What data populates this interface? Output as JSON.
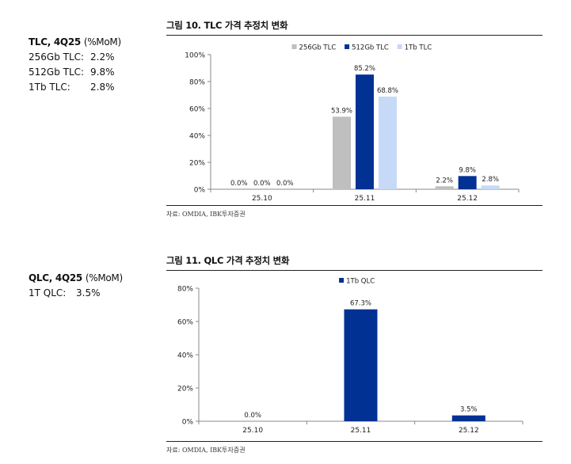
{
  "sidebar_tlc": {
    "heading": "TLC, 4Q25",
    "unit": "(%MoM)",
    "items": [
      {
        "label": "256Gb TLC:",
        "value": "2.2%"
      },
      {
        "label": "512Gb TLC:",
        "value": "9.8%"
      },
      {
        "label": "1Tb TLC:",
        "value": "2.8%"
      }
    ]
  },
  "sidebar_qlc": {
    "heading": "QLC, 4Q25",
    "unit": "(%MoM)",
    "items": [
      {
        "label": "1T QLC:",
        "value": "3.5%"
      }
    ]
  },
  "figures": [
    {
      "title": "그림 10. TLC 가격 추정치 변화",
      "source": "자료: OMDIA, IBK투자증권"
    },
    {
      "title": "그림 11. QLC 가격 추정치 변화",
      "source": "자료: OMDIA, IBK투자증권"
    }
  ],
  "colors": {
    "s256": "#bfbfbf",
    "s512": "#023194",
    "s1tb": "#c6d9f7",
    "axis": "#888888"
  },
  "chart_data": [
    {
      "type": "bar",
      "title": "그림 10. TLC 가격 추정치 변화",
      "categories": [
        "25.10",
        "25.11",
        "25.12"
      ],
      "series": [
        {
          "name": "256Gb TLC",
          "values": [
            0.0,
            53.9,
            2.2
          ],
          "labels": [
            "0.0%",
            "53.9%",
            "2.2%"
          ],
          "color": "#bfbfbf"
        },
        {
          "name": "512Gb TLC",
          "values": [
            0.0,
            85.2,
            9.8
          ],
          "labels": [
            "0.0%",
            "85.2%",
            "9.8%"
          ],
          "color": "#023194"
        },
        {
          "name": "1Tb TLC",
          "values": [
            0.0,
            68.8,
            2.8
          ],
          "labels": [
            "0.0%",
            "68.8%",
            "2.8%"
          ],
          "color": "#c6d9f7"
        }
      ],
      "ylim": [
        0,
        100
      ],
      "yticks": [
        0,
        20,
        40,
        60,
        80,
        100
      ],
      "ytick_labels": [
        "0%",
        "20%",
        "40%",
        "60%",
        "80%",
        "100%"
      ],
      "legend_position": "top-right",
      "xlabel": "",
      "ylabel": ""
    },
    {
      "type": "bar",
      "title": "그림 11. QLC 가격 추정치 변화",
      "categories": [
        "25.10",
        "25.11",
        "25.12"
      ],
      "series": [
        {
          "name": "1Tb QLC",
          "values": [
            0.0,
            67.3,
            3.5
          ],
          "labels": [
            "0.0%",
            "67.3%",
            "3.5%"
          ],
          "color": "#023194"
        }
      ],
      "ylim": [
        0,
        80
      ],
      "yticks": [
        0,
        20,
        40,
        60,
        80
      ],
      "ytick_labels": [
        "0%",
        "20%",
        "40%",
        "60%",
        "80%"
      ],
      "legend_position": "top-center",
      "xlabel": "",
      "ylabel": ""
    }
  ]
}
